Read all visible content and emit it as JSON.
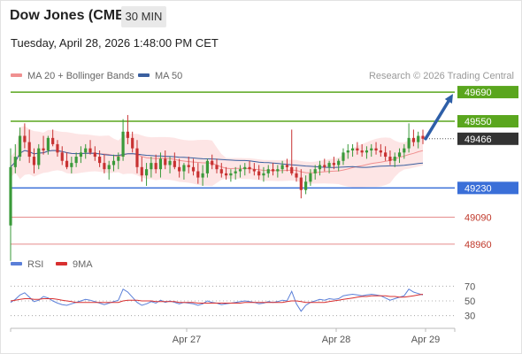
{
  "header": {
    "title": "Dow Jones (CME)",
    "interval": "30 MIN",
    "datetime": "Tuesday, April 28, 2026 1:48:00 PM CET"
  },
  "legend": {
    "ma20": "MA 20 + Bollinger Bands",
    "ma50": "MA 50",
    "credit": "Research © 2026 Trading Central"
  },
  "rsi_legend": {
    "rsi": "RSI",
    "ma9": "9MA"
  },
  "colors": {
    "resistance": "#5aa61e",
    "support": "#3a6fd8",
    "secondary_support": "#e58a8a",
    "current": "#333333",
    "bull": "#3a9a3a",
    "bear": "#c83232",
    "bollinger": "#fde0e0",
    "ma20": "#f09090",
    "ma50": "#3a5f9f",
    "rsi": "#5a7fd8",
    "rsi_ma": "#d83030",
    "arrow": "#2e5fa8"
  },
  "chart_data": [
    {
      "type": "candlestick",
      "levels": [
        {
          "value": 49690,
          "label": "49690",
          "kind": "resistance"
        },
        {
          "value": 49550,
          "label": "49550",
          "kind": "resistance"
        },
        {
          "value": 49466,
          "label": "49466",
          "kind": "current"
        },
        {
          "value": 49230,
          "label": "49230",
          "kind": "support"
        },
        {
          "value": 49090,
          "label": "49090",
          "kind": "secondary_support"
        },
        {
          "value": 48960,
          "label": "48960",
          "kind": "secondary_support"
        }
      ],
      "x_ticks": [
        "Apr 27",
        "Apr 28",
        "Apr 29"
      ],
      "ylim": [
        48930,
        49720
      ],
      "projection_target": 49690,
      "candles": [
        [
          49050,
          49420,
          48880,
          49330
        ],
        [
          49330,
          49440,
          49300,
          49380
        ],
        [
          49380,
          49520,
          49360,
          49480
        ],
        [
          49480,
          49540,
          49420,
          49450
        ],
        [
          49450,
          49510,
          49350,
          49380
        ],
        [
          49380,
          49420,
          49300,
          49340
        ],
        [
          49340,
          49440,
          49320,
          49420
        ],
        [
          49420,
          49480,
          49390,
          49410
        ],
        [
          49410,
          49480,
          49390,
          49470
        ],
        [
          49470,
          49510,
          49430,
          49440
        ],
        [
          49440,
          49460,
          49380,
          49400
        ],
        [
          49400,
          49430,
          49340,
          49360
        ],
        [
          49360,
          49400,
          49320,
          49330
        ],
        [
          49330,
          49380,
          49300,
          49350
        ],
        [
          49350,
          49400,
          49330,
          49380
        ],
        [
          49380,
          49430,
          49350,
          49400
        ],
        [
          49400,
          49440,
          49370,
          49420
        ],
        [
          49420,
          49460,
          49390,
          49400
        ],
        [
          49400,
          49430,
          49360,
          49380
        ],
        [
          49380,
          49410,
          49330,
          49350
        ],
        [
          49350,
          49390,
          49300,
          49320
        ],
        [
          49320,
          49360,
          49270,
          49340
        ],
        [
          49340,
          49390,
          49310,
          49360
        ],
        [
          49360,
          49400,
          49320,
          49380
        ],
        [
          49380,
          49560,
          49360,
          49500
        ],
        [
          49500,
          49580,
          49440,
          49470
        ],
        [
          49470,
          49500,
          49400,
          49420
        ],
        [
          49420,
          49460,
          49300,
          49330
        ],
        [
          49330,
          49380,
          49260,
          49290
        ],
        [
          49290,
          49350,
          49240,
          49320
        ],
        [
          49320,
          49380,
          49280,
          49350
        ],
        [
          49350,
          49390,
          49300,
          49320
        ],
        [
          49320,
          49400,
          49280,
          49370
        ],
        [
          49370,
          49410,
          49320,
          49340
        ],
        [
          49340,
          49380,
          49300,
          49360
        ],
        [
          49360,
          49400,
          49320,
          49330
        ],
        [
          49330,
          49370,
          49280,
          49310
        ],
        [
          49310,
          49350,
          49270,
          49340
        ],
        [
          49340,
          49380,
          49300,
          49330
        ],
        [
          49330,
          49370,
          49290,
          49310
        ],
        [
          49310,
          49350,
          49250,
          49280
        ],
        [
          49280,
          49340,
          49240,
          49300
        ],
        [
          49300,
          49370,
          49280,
          49360
        ],
        [
          49360,
          49390,
          49320,
          49340
        ],
        [
          49340,
          49370,
          49300,
          49320
        ],
        [
          49320,
          49350,
          49280,
          49300
        ],
        [
          49300,
          49330,
          49270,
          49290
        ],
        [
          49290,
          49320,
          49260,
          49300
        ],
        [
          49300,
          49330,
          49270,
          49310
        ],
        [
          49310,
          49340,
          49280,
          49320
        ],
        [
          49320,
          49350,
          49290,
          49330
        ],
        [
          49330,
          49360,
          49300,
          49320
        ],
        [
          49320,
          49350,
          49290,
          49310
        ],
        [
          49310,
          49340,
          49270,
          49290
        ],
        [
          49290,
          49330,
          49260,
          49300
        ],
        [
          49300,
          49340,
          49280,
          49320
        ],
        [
          49320,
          49350,
          49290,
          49310
        ],
        [
          49310,
          49340,
          49280,
          49320
        ],
        [
          49320,
          49360,
          49300,
          49340
        ],
        [
          49340,
          49370,
          49310,
          49330
        ],
        [
          49330,
          49510,
          49290,
          49300
        ],
        [
          49300,
          49330,
          49260,
          49280
        ],
        [
          49280,
          49320,
          49180,
          49220
        ],
        [
          49220,
          49290,
          49200,
          49260
        ],
        [
          49260,
          49320,
          49240,
          49300
        ],
        [
          49300,
          49340,
          49270,
          49320
        ],
        [
          49320,
          49360,
          49290,
          49340
        ],
        [
          49340,
          49370,
          49310,
          49330
        ],
        [
          49330,
          49360,
          49300,
          49350
        ],
        [
          49350,
          49380,
          49320,
          49340
        ],
        [
          49340,
          49370,
          49310,
          49360
        ],
        [
          49360,
          49420,
          49340,
          49400
        ],
        [
          49400,
          49440,
          49370,
          49410
        ],
        [
          49410,
          49440,
          49380,
          49420
        ],
        [
          49420,
          49450,
          49390,
          49410
        ],
        [
          49410,
          49440,
          49380,
          49400
        ],
        [
          49400,
          49430,
          49370,
          49410
        ],
        [
          49410,
          49440,
          49380,
          49420
        ],
        [
          49420,
          49450,
          49390,
          49410
        ],
        [
          49410,
          49440,
          49380,
          49400
        ],
        [
          49400,
          49430,
          49360,
          49380
        ],
        [
          49380,
          49410,
          49340,
          49360
        ],
        [
          49360,
          49400,
          49330,
          49380
        ],
        [
          49380,
          49420,
          49350,
          49400
        ],
        [
          49400,
          49440,
          49370,
          49420
        ],
        [
          49420,
          49540,
          49400,
          49470
        ],
        [
          49470,
          49510,
          49430,
          49450
        ],
        [
          49450,
          49500,
          49420,
          49480
        ],
        [
          49480,
          49510,
          49440,
          49466
        ]
      ]
    },
    {
      "type": "line",
      "series": [
        {
          "name": "RSI",
          "values": [
            48,
            52,
            58,
            61,
            55,
            49,
            51,
            56,
            54,
            50,
            47,
            45,
            44,
            46,
            48,
            50,
            52,
            51,
            49,
            47,
            45,
            47,
            49,
            51,
            66,
            62,
            55,
            48,
            44,
            46,
            49,
            47,
            51,
            48,
            50,
            48,
            46,
            48,
            47,
            46,
            44,
            46,
            50,
            48,
            47,
            45,
            46,
            47,
            48,
            49,
            50,
            49,
            48,
            46,
            47,
            49,
            48,
            49,
            51,
            50,
            63,
            46,
            36,
            44,
            48,
            50,
            52,
            51,
            53,
            52,
            53,
            57,
            58,
            59,
            58,
            57,
            58,
            59,
            58,
            57,
            54,
            51,
            53,
            55,
            57,
            66,
            62,
            60,
            58
          ]
        },
        {
          "name": "9MA",
          "values": [
            50,
            51,
            52,
            53,
            53,
            52,
            52,
            53,
            53,
            53,
            52,
            51,
            50,
            49,
            48,
            48,
            48,
            48,
            48,
            48,
            48,
            48,
            48,
            48,
            50,
            51,
            51,
            51,
            50,
            50,
            50,
            49,
            49,
            49,
            49,
            49,
            48,
            48,
            48,
            48,
            47,
            47,
            47,
            47,
            47,
            47,
            47,
            47,
            47,
            47,
            48,
            48,
            48,
            48,
            48,
            48,
            48,
            48,
            48,
            49,
            50,
            50,
            49,
            48,
            48,
            48,
            48,
            48,
            49,
            50,
            51,
            52,
            53,
            54,
            55,
            56,
            56,
            57,
            57,
            57,
            57,
            56,
            56,
            55,
            55,
            56,
            57,
            58,
            59
          ]
        }
      ],
      "reference_lines": [
        70,
        50,
        30
      ],
      "tick_labels": [
        "70",
        "50",
        "30"
      ],
      "ylim": [
        20,
        80
      ]
    }
  ]
}
